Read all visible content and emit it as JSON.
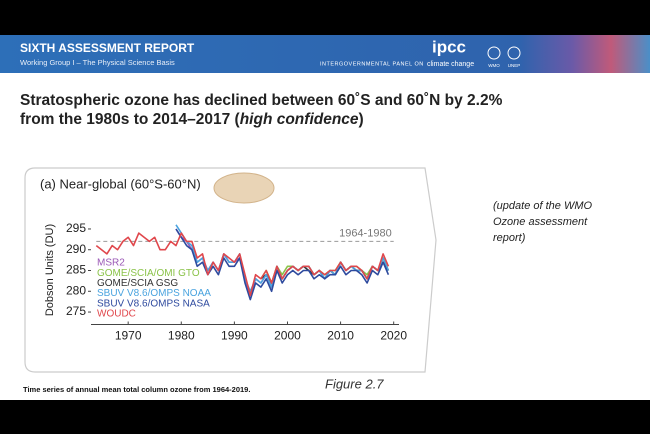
{
  "header": {
    "title": "SIXTH ASSESSMENT REPORT",
    "subtitle": "Working Group I – The Physical Science Basis",
    "logo": "ipcc",
    "org": "INTERGOVERNMENTAL PANEL ON",
    "org_tail": "climate change",
    "partners": [
      "WMO",
      "UNEP"
    ]
  },
  "slide_title": {
    "line1": "Stratospheric ozone has declined between 60˚S and 60˚N by 2.2%",
    "line2_start": "from the 1980s to 2014–2017 (",
    "line2_italic": "high confidence",
    "line2_end": ")"
  },
  "note": [
    "(update of the WMO",
    "Ozone assessment",
    "report)"
  ],
  "caption": "Time series of annual mean total column ozone from 1964-2019.",
  "figure_label": "Figure 2.7",
  "chart_data": {
    "type": "line",
    "title": "(a) Near-global (60°S-60°N)",
    "y_label": "Dobson Units (DU)",
    "xlim": [
      1963,
      2021
    ],
    "xticks": [
      1970,
      1980,
      1990,
      2000,
      2010,
      2020
    ],
    "ylim": [
      272,
      298
    ],
    "yticks": [
      275,
      280,
      285,
      290,
      295
    ],
    "reference_line": {
      "label": "1964-1980",
      "value": 292,
      "x": [
        1964,
        2020
      ],
      "color": "#999999"
    },
    "series": [
      {
        "name": "MSR2",
        "color": "#9b59b6",
        "x": [
          1979,
          1980,
          1981,
          1982,
          1983,
          1984,
          1985,
          1986,
          1987,
          1988,
          1989,
          1990,
          1991,
          1992,
          1993,
          1994,
          1995,
          1996,
          1997,
          1998,
          1999,
          2000,
          2001,
          2002,
          2003,
          2004,
          2005,
          2006,
          2007,
          2008,
          2009,
          2010,
          2011,
          2012,
          2013,
          2014,
          2015,
          2016,
          2017,
          2018,
          2019
        ],
        "values": [
          295,
          293,
          292,
          290,
          287,
          288,
          285,
          287,
          285,
          289,
          287,
          287,
          288,
          283,
          279,
          283,
          282,
          284,
          281,
          286,
          283,
          285,
          286,
          285,
          286,
          286,
          284,
          285,
          283,
          285,
          284,
          287,
          285,
          286,
          285,
          285,
          283,
          286,
          285,
          288,
          285
        ]
      },
      {
        "name": "GOME/SCIA/OMI GTO",
        "color": "#8bc34a",
        "x": [
          1995,
          1996,
          1997,
          1998,
          1999,
          2000,
          2001,
          2002,
          2003,
          2004,
          2005,
          2006,
          2007,
          2008,
          2009,
          2010,
          2011,
          2012,
          2013,
          2014,
          2015,
          2016,
          2017,
          2018,
          2019
        ],
        "values": [
          283,
          285,
          282,
          286,
          284,
          286,
          286,
          285,
          286,
          286,
          284,
          285,
          284,
          285,
          285,
          287,
          285,
          286,
          286,
          285,
          284,
          286,
          285,
          288,
          285
        ]
      },
      {
        "name": "GOME/SCIA GSG",
        "color": "#333333",
        "x": [
          1995,
          1996,
          1997,
          1998,
          1999,
          2000,
          2001,
          2002,
          2003,
          2004,
          2005,
          2006,
          2007,
          2008,
          2009,
          2010,
          2011,
          2012,
          2013,
          2014,
          2015,
          2016,
          2017,
          2018,
          2019
        ],
        "values": [
          283,
          284,
          282,
          285,
          283,
          285,
          286,
          285,
          286,
          285,
          284,
          285,
          283,
          285,
          284,
          287,
          285,
          286,
          285,
          285,
          283,
          286,
          285,
          287,
          285
        ]
      },
      {
        "name": "SBUV V8.6/OMPS NOAA",
        "color": "#4aa3df",
        "x": [
          1979,
          1980,
          1981,
          1982,
          1983,
          1984,
          1985,
          1986,
          1987,
          1988,
          1989,
          1990,
          1991,
          1992,
          1993,
          1994,
          1995,
          1996,
          1997,
          1998,
          1999,
          2000,
          2001,
          2002,
          2003,
          2004,
          2005,
          2006,
          2007,
          2008,
          2009,
          2010,
          2011,
          2012,
          2013,
          2014,
          2015,
          2016,
          2017,
          2018,
          2019
        ],
        "values": [
          296,
          294,
          292,
          291,
          287,
          288,
          285,
          287,
          285,
          289,
          287,
          287,
          289,
          283,
          280,
          283,
          282,
          284,
          281,
          286,
          283,
          285,
          286,
          285,
          286,
          286,
          284,
          285,
          283,
          285,
          284,
          287,
          285,
          286,
          285,
          285,
          283,
          286,
          285,
          288,
          285
        ]
      },
      {
        "name": "SBUV V8.6/OMPS NASA",
        "color": "#2e4a9e",
        "x": [
          1979,
          1980,
          1981,
          1982,
          1983,
          1984,
          1985,
          1986,
          1987,
          1988,
          1989,
          1990,
          1991,
          1992,
          1993,
          1994,
          1995,
          1996,
          1997,
          1998,
          1999,
          2000,
          2001,
          2002,
          2003,
          2004,
          2005,
          2006,
          2007,
          2008,
          2009,
          2010,
          2011,
          2012,
          2013,
          2014,
          2015,
          2016,
          2017,
          2018,
          2019
        ],
        "values": [
          295,
          293,
          291,
          290,
          286,
          287,
          284,
          286,
          284,
          288,
          286,
          286,
          288,
          282,
          278,
          282,
          281,
          283,
          280,
          285,
          282,
          284,
          285,
          284,
          285,
          285,
          283,
          284,
          283,
          284,
          284,
          286,
          284,
          285,
          285,
          284,
          282,
          285,
          284,
          287,
          284
        ]
      },
      {
        "name": "WOUDC",
        "color": "#e0474c",
        "x": [
          1964,
          1965,
          1966,
          1967,
          1968,
          1969,
          1970,
          1971,
          1972,
          1973,
          1974,
          1975,
          1976,
          1977,
          1978,
          1979,
          1980,
          1981,
          1982,
          1983,
          1984,
          1985,
          1986,
          1987,
          1988,
          1989,
          1990,
          1991,
          1992,
          1993,
          1994,
          1995,
          1996,
          1997,
          1998,
          1999,
          2000,
          2001,
          2002,
          2003,
          2004,
          2005,
          2006,
          2007,
          2008,
          2009,
          2010,
          2011,
          2012,
          2013,
          2014,
          2015,
          2016,
          2017,
          2018,
          2019
        ],
        "values": [
          291,
          290,
          289,
          291,
          290,
          292,
          293,
          291,
          294,
          293,
          292,
          293,
          290,
          290,
          292,
          291,
          294,
          292,
          292,
          288,
          289,
          284,
          287,
          285,
          289,
          288,
          287,
          289,
          284,
          279,
          284,
          283,
          285,
          282,
          286,
          283,
          285,
          286,
          285,
          286,
          286,
          284,
          285,
          284,
          285,
          285,
          287,
          285,
          286,
          286,
          285,
          283,
          286,
          285,
          289,
          286
        ]
      }
    ]
  }
}
